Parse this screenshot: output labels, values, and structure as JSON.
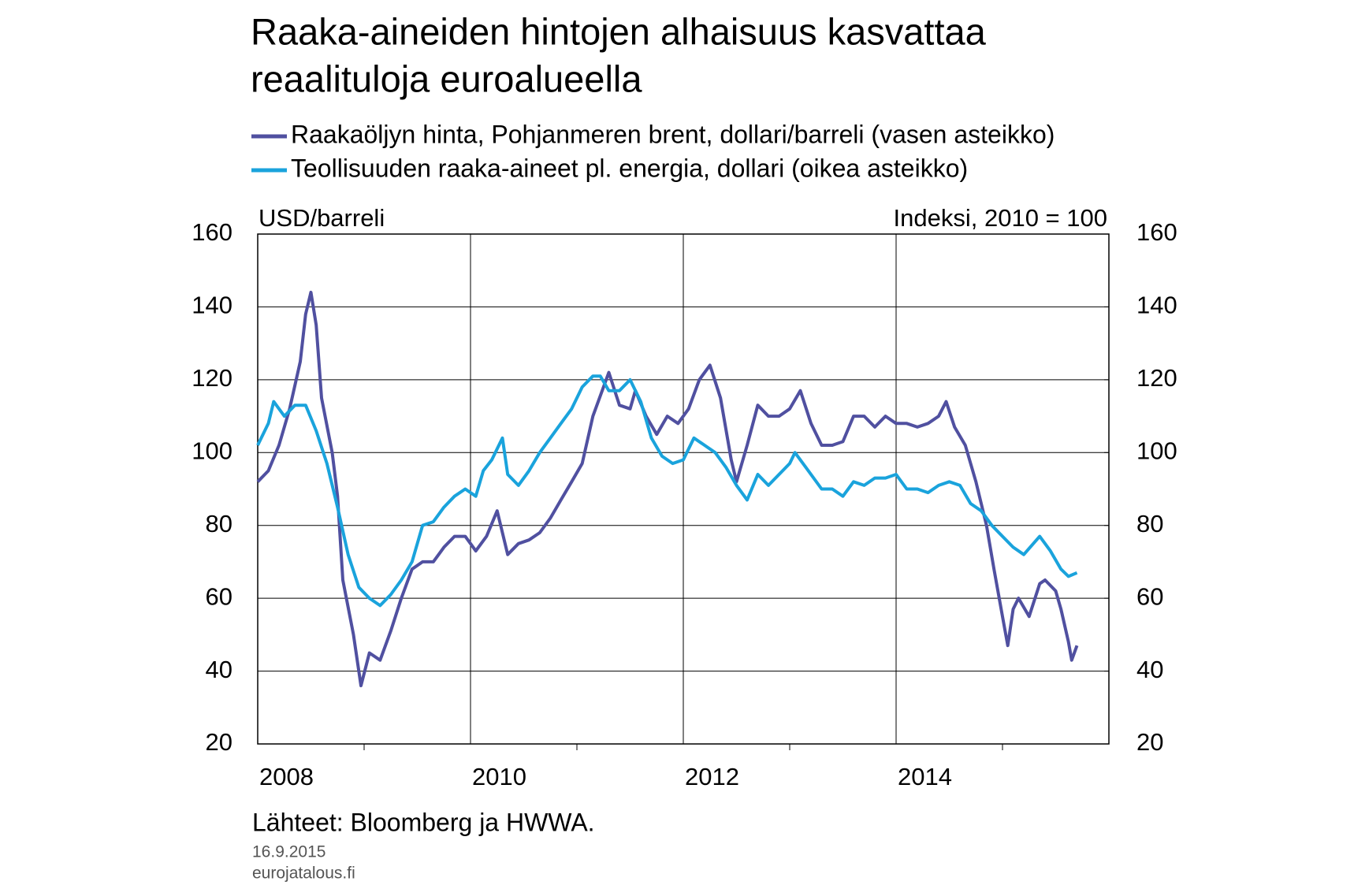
{
  "chart_data": {
    "type": "line",
    "title": [
      "Raaka-aineiden hintojen alhaisuus kasvattaa",
      "reaalituloja euroalueella"
    ],
    "ylabel": "USD/barreli",
    "y2label": "Indeksi, 2010 = 100",
    "source": "Lähteet: Bloomberg ja HWWA.",
    "date": "16.9.2015",
    "site": "eurojatalous.fi",
    "xlim": [
      2008,
      2016
    ],
    "xticks": [
      2008,
      2010,
      2012,
      2014
    ],
    "xminorticks": [
      2009,
      2011,
      2013,
      2015
    ],
    "ylim": [
      20,
      160
    ],
    "yticks": [
      20,
      40,
      60,
      80,
      100,
      120,
      140,
      160
    ],
    "y2lim": [
      20,
      160
    ],
    "y2ticks": [
      20,
      40,
      60,
      80,
      100,
      120,
      140,
      160
    ],
    "grid": true,
    "series": [
      {
        "name": "Raakaöljyn hinta, Pohjanmeren brent, dollari/barreli (vasen asteikko)",
        "color": "#5050a0",
        "axis": "y",
        "x": [
          2008.0,
          2008.1,
          2008.2,
          2008.3,
          2008.4,
          2008.45,
          2008.5,
          2008.55,
          2008.6,
          2008.7,
          2008.75,
          2008.8,
          2008.9,
          2008.97,
          2009.05,
          2009.15,
          2009.25,
          2009.35,
          2009.45,
          2009.55,
          2009.65,
          2009.75,
          2009.85,
          2009.95,
          2010.05,
          2010.15,
          2010.25,
          2010.35,
          2010.45,
          2010.55,
          2010.65,
          2010.75,
          2010.85,
          2010.95,
          2011.05,
          2011.15,
          2011.3,
          2011.4,
          2011.5,
          2011.55,
          2011.65,
          2011.75,
          2011.85,
          2011.95,
          2012.05,
          2012.15,
          2012.25,
          2012.35,
          2012.45,
          2012.5,
          2012.6,
          2012.7,
          2012.8,
          2012.9,
          2013.0,
          2013.1,
          2013.2,
          2013.3,
          2013.4,
          2013.5,
          2013.6,
          2013.7,
          2013.8,
          2013.9,
          2014.0,
          2014.1,
          2014.2,
          2014.3,
          2014.4,
          2014.47,
          2014.55,
          2014.65,
          2014.75,
          2014.85,
          2014.92,
          2015.0,
          2015.05,
          2015.1,
          2015.15,
          2015.25,
          2015.35,
          2015.4,
          2015.5,
          2015.55,
          2015.62,
          2015.65,
          2015.7
        ],
        "values": [
          92,
          95,
          102,
          112,
          125,
          138,
          144,
          135,
          115,
          100,
          88,
          65,
          50,
          36,
          45,
          43,
          51,
          60,
          68,
          70,
          70,
          74,
          77,
          77,
          73,
          77,
          84,
          72,
          75,
          76,
          78,
          82,
          87,
          92,
          97,
          110,
          122,
          113,
          112,
          117,
          110,
          105,
          110,
          108,
          112,
          120,
          124,
          115,
          98,
          92,
          102,
          113,
          110,
          110,
          112,
          117,
          108,
          102,
          102,
          103,
          110,
          110,
          107,
          110,
          108,
          108,
          107,
          108,
          110,
          114,
          107,
          102,
          92,
          80,
          68,
          55,
          47,
          57,
          60,
          55,
          64,
          65,
          62,
          57,
          48,
          43,
          47
        ]
      },
      {
        "name": "Teollisuuden raaka-aineet pl. energia, dollari (oikea asteikko)",
        "color": "#1aa3dc",
        "axis": "y2",
        "x": [
          2008.0,
          2008.1,
          2008.15,
          2008.25,
          2008.35,
          2008.45,
          2008.55,
          2008.65,
          2008.75,
          2008.85,
          2008.95,
          2009.05,
          2009.15,
          2009.25,
          2009.35,
          2009.45,
          2009.55,
          2009.65,
          2009.75,
          2009.85,
          2009.95,
          2010.05,
          2010.12,
          2010.2,
          2010.3,
          2010.35,
          2010.45,
          2010.55,
          2010.65,
          2010.75,
          2010.85,
          2010.95,
          2011.05,
          2011.15,
          2011.22,
          2011.3,
          2011.4,
          2011.5,
          2011.6,
          2011.7,
          2011.8,
          2011.9,
          2012.0,
          2012.1,
          2012.2,
          2012.3,
          2012.4,
          2012.5,
          2012.6,
          2012.7,
          2012.8,
          2012.9,
          2013.0,
          2013.05,
          2013.15,
          2013.3,
          2013.4,
          2013.5,
          2013.6,
          2013.7,
          2013.8,
          2013.9,
          2014.0,
          2014.1,
          2014.2,
          2014.3,
          2014.4,
          2014.5,
          2014.6,
          2014.7,
          2014.8,
          2014.9,
          2015.0,
          2015.1,
          2015.2,
          2015.35,
          2015.45,
          2015.55,
          2015.62,
          2015.7
        ],
        "values": [
          102,
          108,
          114,
          110,
          113,
          113,
          106,
          97,
          85,
          72,
          63,
          60,
          58,
          61,
          65,
          70,
          80,
          81,
          85,
          88,
          90,
          88,
          95,
          98,
          104,
          94,
          91,
          95,
          100,
          104,
          108,
          112,
          118,
          121,
          121,
          117,
          117,
          120,
          114,
          104,
          99,
          97,
          98,
          104,
          102,
          100,
          96,
          91,
          87,
          94,
          91,
          94,
          97,
          100,
          96,
          90,
          90,
          88,
          92,
          91,
          93,
          93,
          94,
          90,
          90,
          89,
          91,
          92,
          91,
          86,
          84,
          80,
          77,
          74,
          72,
          77,
          73,
          68,
          66,
          67
        ]
      }
    ]
  }
}
